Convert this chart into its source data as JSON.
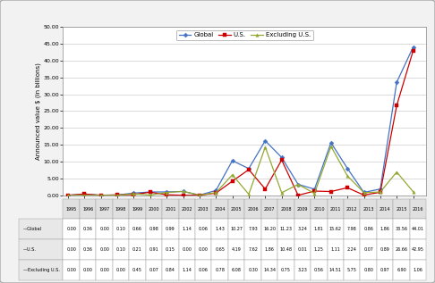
{
  "years": [
    1995,
    1996,
    1997,
    1998,
    1999,
    2000,
    2001,
    2002,
    2003,
    2004,
    2005,
    2006,
    2007,
    2008,
    2009,
    2010,
    2011,
    2012,
    2013,
    2014,
    2015,
    2016
  ],
  "global": [
    0.0,
    0.36,
    0.0,
    0.1,
    0.66,
    0.98,
    0.99,
    1.14,
    0.06,
    1.43,
    10.27,
    7.93,
    16.2,
    11.23,
    3.24,
    1.81,
    15.62,
    7.98,
    0.86,
    1.86,
    33.56,
    44.01
  ],
  "us": [
    0.0,
    0.36,
    0.0,
    0.1,
    0.21,
    0.91,
    0.15,
    0.0,
    0.0,
    0.65,
    4.19,
    7.62,
    1.86,
    10.48,
    0.01,
    1.25,
    1.11,
    2.24,
    0.07,
    0.89,
    26.66,
    42.95
  ],
  "excl_us": [
    0.0,
    0.0,
    0.0,
    0.0,
    0.45,
    0.07,
    0.84,
    1.14,
    0.06,
    0.78,
    6.08,
    0.3,
    14.34,
    0.75,
    3.23,
    0.56,
    14.51,
    5.75,
    0.8,
    0.97,
    6.9,
    1.06
  ],
  "global_color": "#4472c4",
  "us_color": "#cc0000",
  "excl_us_color": "#93a832",
  "ylim": [
    0,
    50
  ],
  "yticks": [
    0.0,
    5.0,
    10.0,
    15.0,
    20.0,
    25.0,
    30.0,
    35.0,
    40.0,
    45.0,
    50.0
  ],
  "ylabel": "Announced value $ (in billions)",
  "table_labels": [
    "Global",
    "U.S.",
    "Excluding U.S."
  ],
  "bg_color": "#f2f2f2",
  "plot_bg": "#ffffff",
  "grid_color": "#c0c0c0",
  "border_color": "#888888",
  "global_row": [
    "0.00",
    "0.36",
    "0.00",
    "0.10",
    "0.66",
    "0.98",
    "0.99",
    "1.14",
    "0.06",
    "1.43",
    "10.27",
    "7.93",
    "16.20",
    "11.23",
    "3.24",
    "1.81",
    "15.62",
    "7.98",
    "0.86",
    "1.86",
    "33.56",
    "44.01"
  ],
  "us_row": [
    "0.00",
    "0.36",
    "0.00",
    "0.10",
    "0.21",
    "0.91",
    "0.15",
    "0.00",
    "0.00",
    "0.65",
    "4.19",
    "7.62",
    "1.86",
    "10.48",
    "0.01",
    "1.25",
    "1.11",
    "2.24",
    "0.07",
    "0.89",
    "26.66",
    "42.95"
  ],
  "excl_row": [
    "0.00",
    "0.00",
    "0.00",
    "0.00",
    "0.45",
    "0.07",
    "0.84",
    "1.14",
    "0.06",
    "0.78",
    "6.08",
    "0.30",
    "14.34",
    "0.75",
    "3.23",
    "0.56",
    "14.51",
    "5.75",
    "0.80",
    "0.97",
    "6.90",
    "1.06"
  ]
}
